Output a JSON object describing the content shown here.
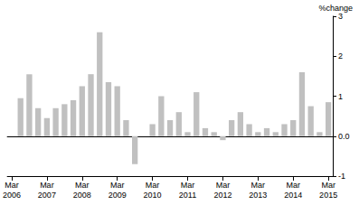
{
  "chart_data": {
    "type": "bar",
    "categories": [
      "Mar\n2006",
      null,
      null,
      null,
      "Mar\n2007",
      null,
      null,
      null,
      "Mar\n2008",
      null,
      null,
      null,
      "Mar\n2009",
      null,
      null,
      null,
      "Mar\n2010",
      null,
      null,
      null,
      "Mar\n2011",
      null,
      null,
      null,
      "Mar\n2012",
      null,
      null,
      null,
      "Mar\n2013",
      null,
      null,
      null,
      "Mar\n2014",
      null,
      null,
      null,
      "Mar\n2015"
    ],
    "values": [
      null,
      0.95,
      1.55,
      0.7,
      0.45,
      0.7,
      0.8,
      0.9,
      1.25,
      1.55,
      2.6,
      1.35,
      1.25,
      0.4,
      -0.7,
      0.0,
      0.3,
      1.0,
      0.4,
      0.6,
      0.1,
      1.1,
      0.2,
      0.1,
      -0.1,
      0.4,
      0.6,
      0.3,
      0.1,
      0.2,
      0.1,
      0.3,
      0.4,
      1.6,
      0.75,
      0.1,
      0.85
    ],
    "color": "#c0c0c0",
    "y_label": "%change",
    "ylim": [
      -1,
      3
    ],
    "yticks": [
      -1,
      {
        "value": 0,
        "label": "0.0"
      },
      1,
      2,
      3
    ],
    "grid": false
  }
}
